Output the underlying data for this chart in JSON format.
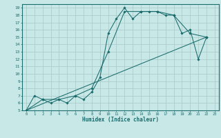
{
  "xlabel": "Humidex (Indice chaleur)",
  "bg_color": "#c8e8e8",
  "line_color": "#1a6b6b",
  "grid_color": "#a8c8c8",
  "xlim": [
    -0.5,
    23.5
  ],
  "ylim": [
    5,
    19.5
  ],
  "xticks": [
    0,
    1,
    2,
    3,
    4,
    5,
    6,
    7,
    8,
    9,
    10,
    11,
    12,
    13,
    14,
    15,
    16,
    17,
    18,
    19,
    20,
    21,
    22,
    23
  ],
  "yticks": [
    5,
    6,
    7,
    8,
    9,
    10,
    11,
    12,
    13,
    14,
    15,
    16,
    17,
    18,
    19
  ],
  "line1_x": [
    0,
    1,
    2,
    3,
    4,
    5,
    6,
    7,
    8,
    9,
    10,
    11,
    12,
    13,
    14,
    15,
    16,
    17,
    18,
    19,
    20,
    21,
    22
  ],
  "line1_y": [
    5.0,
    7.0,
    6.5,
    6.0,
    6.5,
    6.0,
    7.0,
    6.5,
    7.5,
    9.5,
    15.5,
    17.5,
    19.0,
    17.5,
    18.5,
    18.5,
    18.5,
    18.0,
    18.0,
    15.5,
    16.0,
    12.0,
    15.0
  ],
  "line2_x": [
    0,
    2,
    4,
    6,
    8,
    10,
    12,
    14,
    16,
    18,
    20,
    22
  ],
  "line2_y": [
    5.0,
    6.5,
    6.5,
    7.0,
    8.0,
    13.0,
    18.5,
    18.5,
    18.5,
    18.0,
    15.5,
    15.0
  ],
  "line3_x": [
    0,
    22
  ],
  "line3_y": [
    5.0,
    15.0
  ]
}
